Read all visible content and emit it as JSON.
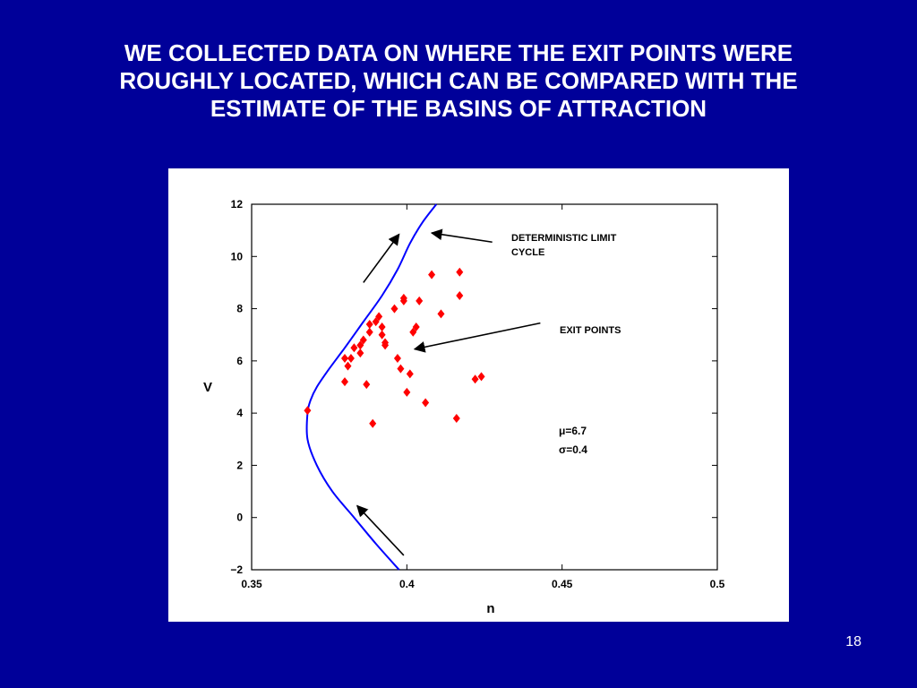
{
  "slide": {
    "title_lines": [
      "WE COLLECTED DATA ON WHERE THE EXIT POINTS WERE",
      "ROUGHLY LOCATED, WHICH CAN BE COMPARED WITH THE",
      "ESTIMATE OF THE BASINS OF ATTRACTION"
    ],
    "page_number": "18",
    "background_color": "#000099"
  },
  "chart_data": {
    "type": "scatter",
    "xlabel": "n",
    "ylabel": "V",
    "xlim": [
      0.35,
      0.5
    ],
    "ylim": [
      -2,
      12
    ],
    "x_ticks": [
      "0.35",
      "0.4",
      "0.45",
      "0.5"
    ],
    "y_ticks": [
      "12",
      "10",
      "8",
      "6",
      "4",
      "2",
      "0",
      "−2"
    ],
    "grid": false,
    "series": [
      {
        "kind": "points",
        "color": "#ff0000",
        "marker": "diamond",
        "points": [
          [
            0.368,
            4.1
          ],
          [
            0.38,
            6.1
          ],
          [
            0.38,
            5.2
          ],
          [
            0.381,
            5.8
          ],
          [
            0.382,
            6.1
          ],
          [
            0.383,
            6.5
          ],
          [
            0.385,
            6.6
          ],
          [
            0.385,
            6.3
          ],
          [
            0.386,
            6.8
          ],
          [
            0.387,
            5.1
          ],
          [
            0.388,
            7.1
          ],
          [
            0.388,
            7.4
          ],
          [
            0.389,
            3.6
          ],
          [
            0.39,
            7.5
          ],
          [
            0.391,
            7.7
          ],
          [
            0.392,
            7.3
          ],
          [
            0.392,
            7.0
          ],
          [
            0.393,
            6.6
          ],
          [
            0.393,
            6.7
          ],
          [
            0.396,
            8.0
          ],
          [
            0.397,
            6.1
          ],
          [
            0.398,
            5.7
          ],
          [
            0.399,
            8.3
          ],
          [
            0.399,
            8.4
          ],
          [
            0.4,
            4.8
          ],
          [
            0.401,
            5.5
          ],
          [
            0.402,
            7.1
          ],
          [
            0.403,
            7.3
          ],
          [
            0.404,
            8.3
          ],
          [
            0.406,
            4.4
          ],
          [
            0.408,
            9.3
          ],
          [
            0.411,
            7.8
          ],
          [
            0.416,
            3.8
          ],
          [
            0.417,
            9.4
          ],
          [
            0.417,
            8.5
          ],
          [
            0.422,
            5.3
          ],
          [
            0.424,
            5.4
          ]
        ]
      },
      {
        "kind": "curve",
        "color": "#0000ff",
        "points": [
          [
            0.3975,
            -2
          ],
          [
            0.39,
            -1
          ],
          [
            0.383,
            0
          ],
          [
            0.376,
            1
          ],
          [
            0.371,
            2
          ],
          [
            0.368,
            3
          ],
          [
            0.368,
            4
          ],
          [
            0.369,
            4.5
          ],
          [
            0.371,
            5
          ],
          [
            0.375,
            5.7
          ],
          [
            0.38,
            6.5
          ],
          [
            0.386,
            7.5
          ],
          [
            0.392,
            8.5
          ],
          [
            0.397,
            9.5
          ],
          [
            0.401,
            10.5
          ],
          [
            0.405,
            11.3
          ],
          [
            0.4095,
            12
          ]
        ]
      }
    ],
    "arrows": [
      {
        "from": [
          0.386,
          9.0
        ],
        "to": [
          0.3975,
          10.85
        ]
      },
      {
        "from": [
          0.399,
          -1.45
        ],
        "to": [
          0.384,
          0.45
        ]
      },
      {
        "from": [
          0.4275,
          10.55
        ],
        "to": [
          0.408,
          10.9
        ]
      },
      {
        "from": [
          0.443,
          7.45
        ],
        "to": [
          0.4025,
          6.45
        ]
      }
    ],
    "annotations": {
      "limit_cycle_label_line1": "DETERMINISTIC LIMIT",
      "limit_cycle_label_line2": "CYCLE",
      "exit_points_label": "EXIT POINTS",
      "mu_symbol": "μ",
      "mu_value": "=6.7",
      "sigma_symbol": "σ",
      "sigma_value": "=0.4"
    }
  }
}
